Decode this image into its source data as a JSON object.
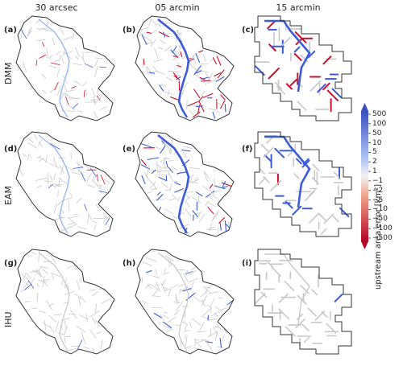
{
  "columns": [
    "30 arcsec",
    "05 arcmin",
    "15 arcmin"
  ],
  "rows": [
    "DMM",
    "EAM",
    "IHU"
  ],
  "panels": [
    "(a)",
    "(b)",
    "(c)",
    "(d)",
    "(e)",
    "(f)",
    "(g)",
    "(h)",
    "(i)"
  ],
  "colorbar": {
    "title": "upstream area error [km²]",
    "ticks": [
      "500",
      "100",
      "50",
      "10",
      "5",
      "2",
      "1",
      "−1",
      "−2",
      "−5",
      "−10",
      "−50",
      "−100",
      "−500"
    ],
    "colors": {
      "high": "#3a4fc0",
      "mid": "#f2f2f2",
      "low": "#b40426"
    }
  },
  "colors": {
    "outline": "#333333",
    "network": "#c8c8c8",
    "positive": "#3b5bdb",
    "negative": "#c8102e"
  }
}
